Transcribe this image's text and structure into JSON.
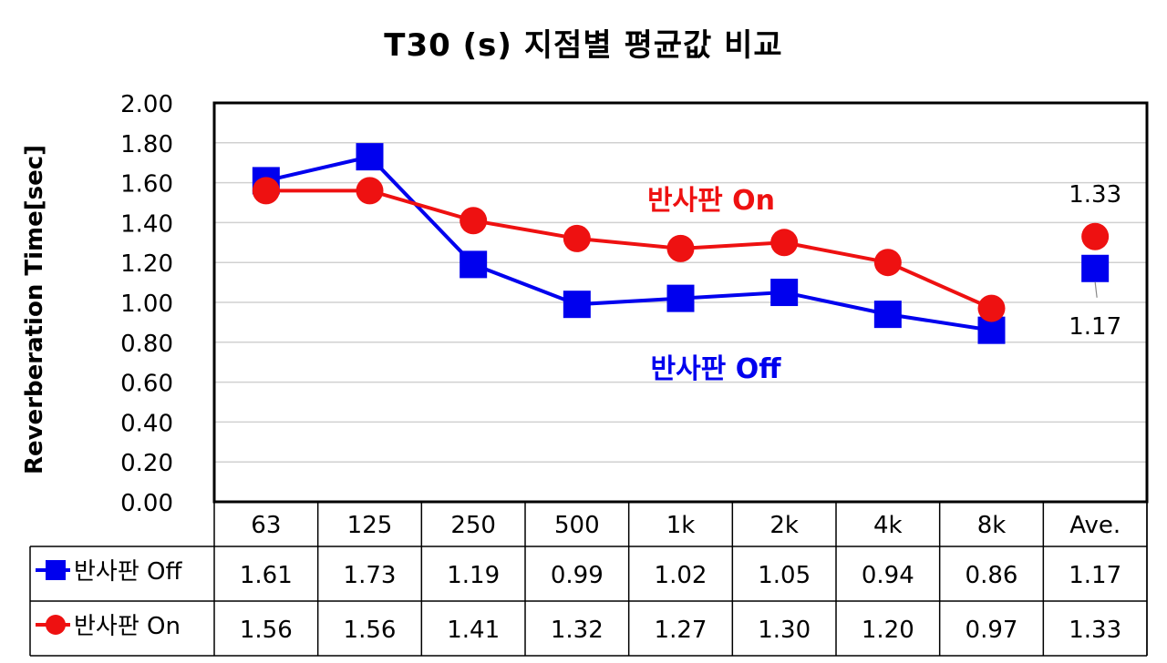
{
  "chart_data": {
    "type": "line",
    "title": "T30 (s) 지점별 평균값 비교",
    "ylabel": "Reverberation Time[sec]",
    "xlabel": "",
    "categories": [
      "63",
      "125",
      "250",
      "500",
      "1k",
      "2k",
      "4k",
      "8k",
      "Ave."
    ],
    "ylim": [
      0,
      2.0
    ],
    "yticks": [
      "0.00",
      "0.20",
      "0.40",
      "0.60",
      "0.80",
      "1.00",
      "1.20",
      "1.40",
      "1.60",
      "1.80",
      "2.00"
    ],
    "grid": true,
    "series": [
      {
        "name": "반사판 Off",
        "color": "#0000ee",
        "marker": "square",
        "values": [
          1.61,
          1.73,
          1.19,
          0.99,
          1.02,
          1.05,
          0.94,
          0.86,
          1.17
        ],
        "table_values": [
          "1.61",
          "1.73",
          "1.19",
          "0.99",
          "1.02",
          "1.05",
          "0.94",
          "0.86",
          "1.17"
        ],
        "annotation": "반사판 Off",
        "ave_label": "1.17"
      },
      {
        "name": "반사판 On",
        "color": "#ee1111",
        "marker": "circle",
        "values": [
          1.56,
          1.56,
          1.41,
          1.32,
          1.27,
          1.3,
          1.2,
          0.97,
          1.33
        ],
        "table_values": [
          "1.56",
          "1.56",
          "1.41",
          "1.32",
          "1.27",
          "1.30",
          "1.20",
          "0.97",
          "1.33"
        ],
        "annotation": "반사판 On",
        "ave_label": "1.33"
      }
    ]
  }
}
